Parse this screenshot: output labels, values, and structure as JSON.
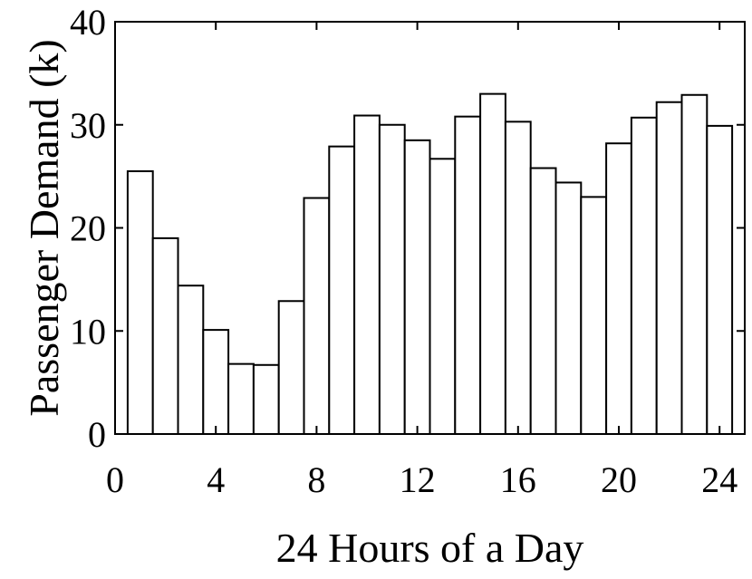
{
  "chart_data": {
    "type": "bar",
    "xlabel": "24 Hours of a Day",
    "ylabel": "Passenger Demand (k)",
    "x": [
      1,
      2,
      3,
      4,
      5,
      6,
      7,
      8,
      9,
      10,
      11,
      12,
      13,
      14,
      15,
      16,
      17,
      18,
      19,
      20,
      21,
      22,
      23,
      24
    ],
    "values": [
      25.5,
      19.0,
      14.4,
      10.1,
      6.8,
      6.7,
      12.9,
      22.9,
      27.9,
      30.9,
      30.0,
      28.5,
      26.7,
      30.8,
      33.0,
      30.3,
      25.8,
      24.4,
      23.0,
      28.2,
      30.7,
      32.2,
      32.9,
      29.9
    ],
    "xlim": [
      0,
      25
    ],
    "ylim": [
      0,
      40
    ],
    "xticks": [
      0,
      4,
      8,
      12,
      16,
      20,
      24
    ],
    "yticks": [
      0,
      10,
      20,
      30,
      40
    ],
    "grid": false,
    "bar_fill": "#ffffff",
    "bar_edge": "#000000"
  }
}
